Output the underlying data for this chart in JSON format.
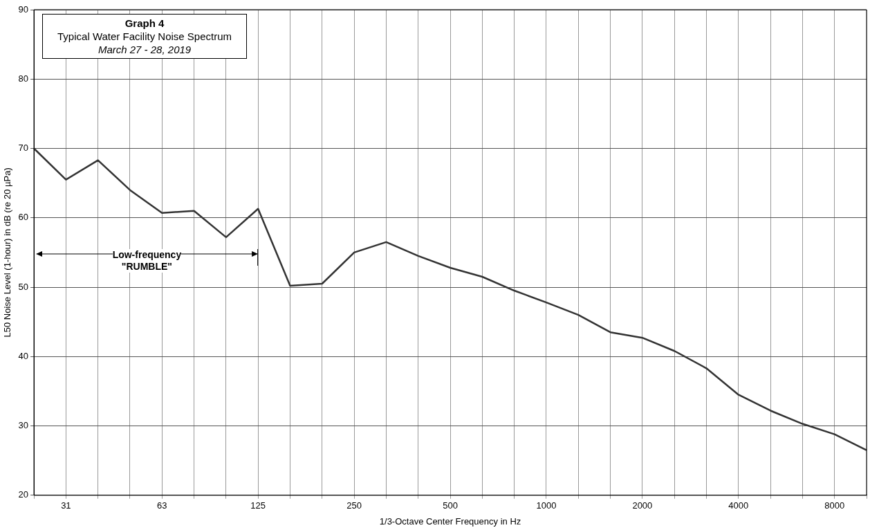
{
  "chart_data": {
    "type": "line",
    "title": "Graph 4",
    "subtitle": "Typical Water Facility Noise Spectrum",
    "xlabel": "1/3-Octave Center Frequency in Hz",
    "ylabel": "L50 Noise Level (1-hour) in dB (re 20 µPa)",
    "annotations": [
      "March 27 - 28, 2019",
      "Low-frequency\n\"RUMBLE\""
    ],
    "categories": [
      null,
      "31",
      null,
      null,
      "63",
      null,
      null,
      "125",
      null,
      null,
      "250",
      null,
      null,
      "500",
      null,
      null,
      "1000",
      null,
      null,
      "2000",
      null,
      null,
      "4000",
      null,
      null,
      "8000",
      null
    ],
    "series": [
      {
        "color": "#333333",
        "values": [
          70,
          65.5,
          68.3,
          64,
          60.7,
          61,
          57.2,
          61.3,
          50.2,
          50.5,
          55,
          56.5,
          54.5,
          52.8,
          51.5,
          49.5,
          47.8,
          46,
          43.5,
          42.7,
          40.8,
          38.3,
          34.5,
          32.2,
          30.3,
          28.8,
          26.5
        ]
      }
    ],
    "ylim": [
      20,
      90
    ],
    "yticks": [
      20,
      30,
      40,
      50,
      60,
      70,
      80,
      90
    ],
    "grid": true,
    "legend": false,
    "marker": "none",
    "line_style": "solid"
  }
}
